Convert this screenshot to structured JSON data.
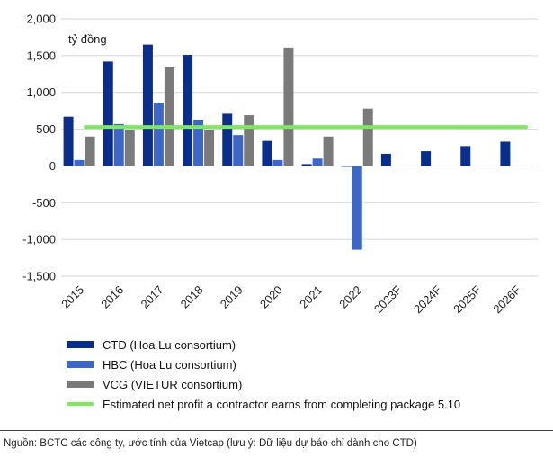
{
  "chart_data": {
    "type": "bar",
    "unit_label": "tỷ đồng",
    "categories": [
      "2015",
      "2016",
      "2017",
      "2018",
      "2019",
      "2020",
      "2021",
      "2022",
      "2023F",
      "2024F",
      "2025F",
      "2026F"
    ],
    "ylim": [
      -1500,
      2000
    ],
    "yticks": [
      -1500,
      -1000,
      -500,
      0,
      500,
      1000,
      1500,
      2000
    ],
    "ytick_labels": [
      "-1,500",
      "-1,000",
      "-500",
      "0",
      "500",
      "1,000",
      "1,500",
      "2,000"
    ],
    "grid": true,
    "legend_position": "bottom",
    "series": [
      {
        "name": "CTD (Hoa Lu consortium)",
        "color": "#0a2e8c",
        "values": [
          670,
          1420,
          1650,
          1510,
          710,
          340,
          25,
          -10,
          165,
          200,
          270,
          330
        ]
      },
      {
        "name": "HBC (Hoa Lu consortium)",
        "color": "#3d67c6",
        "values": [
          80,
          570,
          860,
          630,
          420,
          80,
          100,
          -1140,
          null,
          null,
          null,
          null
        ]
      },
      {
        "name": "VCG (VIETUR consortium)",
        "color": "#7a7a7a",
        "values": [
          400,
          490,
          1340,
          490,
          690,
          1610,
          400,
          780,
          null,
          null,
          null,
          null
        ]
      }
    ],
    "reference_line": {
      "name": "Estimated net profit a contractor earns from completing package 5.10",
      "value": 530,
      "color": "#7ee85e"
    }
  },
  "source_text": "Nguồn: BCTC các công ty, ước tính của Vietcap (lưu ý: Dữ liệu dự báo chỉ dành cho CTD)"
}
